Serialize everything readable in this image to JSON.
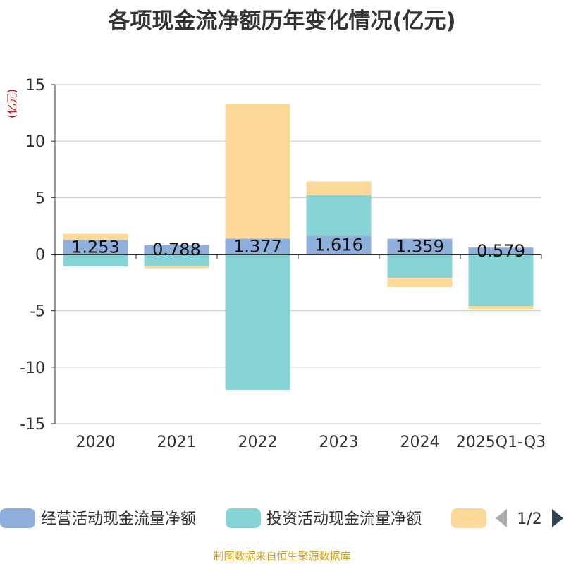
{
  "title": "各项现金流净额历年变化情况(亿元)",
  "source": "制图数据来自恒生聚源数据库",
  "pager": "1/2",
  "colors": {
    "operating": "#8eaedc",
    "investing": "#86d4d6",
    "financing": "#fdd89b",
    "axis": "#333333",
    "grid": "#c8c8c8",
    "unit": "#cc0000",
    "pager_active": "#2f4554",
    "pager_inactive": "#aaaaaa"
  },
  "chart_data": {
    "type": "bar",
    "stacked": true,
    "categories": [
      "2020",
      "2021",
      "2022",
      "2023",
      "2024",
      "2025Q1-Q3"
    ],
    "series": [
      {
        "name": "经营活动现金流量净额",
        "key": "operating",
        "values": [
          1.253,
          0.788,
          1.377,
          1.616,
          1.359,
          0.579
        ]
      },
      {
        "name": "投资活动现金流量净额",
        "key": "investing",
        "values": [
          -1.1,
          -1.05,
          -12.0,
          3.6,
          -2.1,
          -4.6
        ]
      },
      {
        "name": "",
        "key": "financing",
        "values": [
          0.55,
          -0.2,
          11.9,
          1.2,
          -0.8,
          -0.3
        ]
      }
    ],
    "data_labels": [
      "1.253",
      "0.788",
      "1.377",
      "1.616",
      "1.359",
      "0.579"
    ],
    "yunit": "(亿元)",
    "yticks": [
      15,
      10,
      5,
      0,
      -5,
      -10,
      -15
    ],
    "ylim": [
      -15,
      15
    ],
    "grid": true,
    "legend": "bottom"
  }
}
